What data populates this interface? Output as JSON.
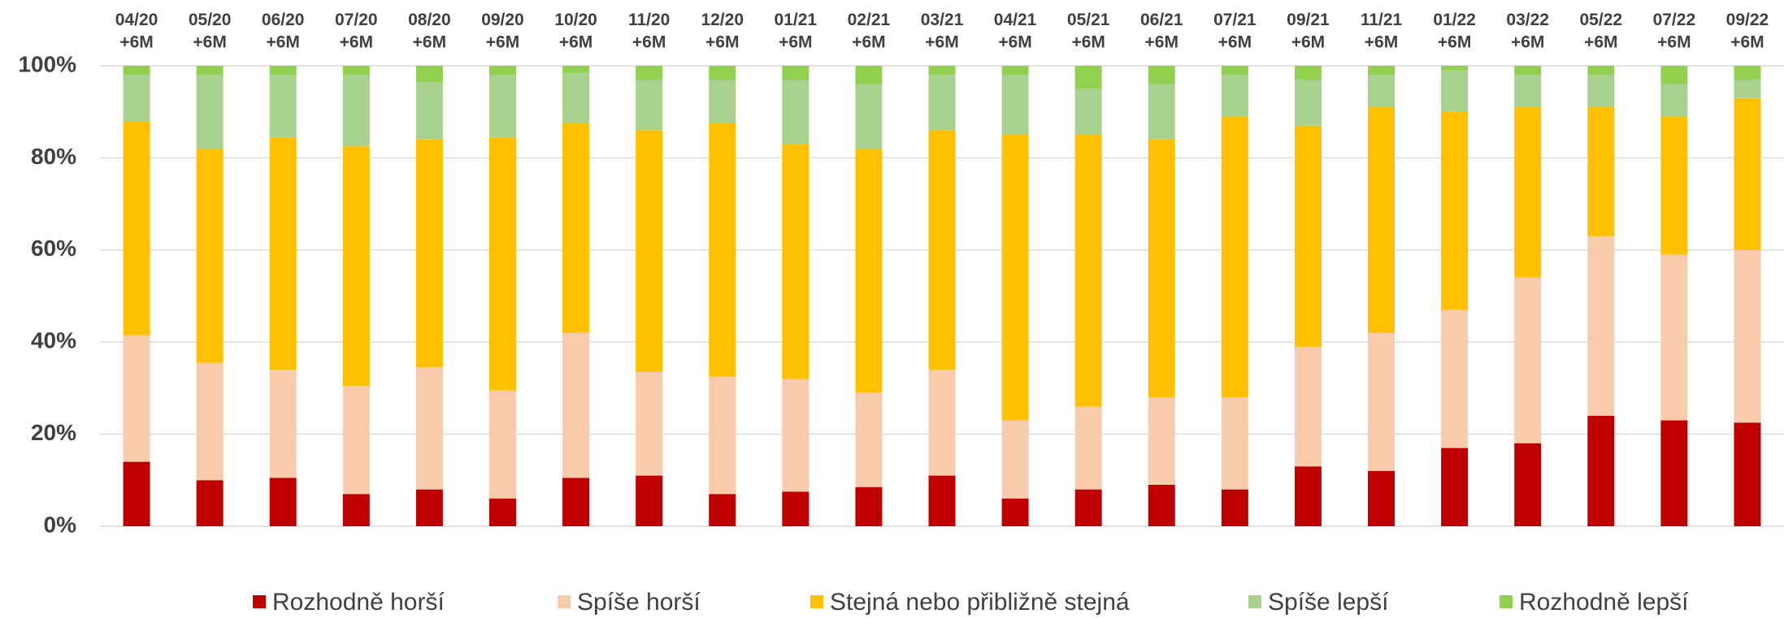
{
  "chart_data": {
    "type": "stacked_bar",
    "categories": [
      "04/20\n+6M",
      "05/20\n+6M",
      "06/20\n+6M",
      "07/20\n+6M",
      "08/20\n+6M",
      "09/20\n+6M",
      "10/20\n+6M",
      "11/20\n+6M",
      "12/20\n+6M",
      "01/21\n+6M",
      "02/21\n+6M",
      "03/21\n+6M",
      "04/21\n+6M",
      "05/21\n+6M",
      "06/21\n+6M",
      "07/21\n+6M",
      "09/21\n+6M",
      "11/21\n+6M",
      "01/22\n+6M",
      "03/22\n+6M",
      "05/22\n+6M",
      "07/22\n+6M",
      "09/22\n+6M"
    ],
    "series": [
      {
        "name": "Rozhodně horší",
        "color": "#c00000",
        "values": [
          14,
          10,
          10.5,
          7,
          8,
          6,
          10.5,
          11,
          7,
          7.5,
          8.5,
          11,
          6,
          8,
          9,
          8,
          13,
          12,
          17,
          18,
          24,
          23,
          22.5
        ]
      },
      {
        "name": "Spíše horší",
        "color": "#f8cbad",
        "values": [
          27.5,
          25.5,
          23.5,
          23.5,
          26.5,
          23.5,
          31.5,
          22.5,
          25.5,
          24.5,
          20.5,
          23,
          17,
          18,
          19,
          20,
          26,
          30,
          30,
          36,
          39,
          36,
          37.5
        ]
      },
      {
        "name": "Stejná nebo přibližně stejná",
        "color": "#ffc000",
        "values": [
          46.5,
          46.5,
          50.5,
          52,
          49.5,
          55,
          45.5,
          52.5,
          55,
          51,
          53,
          52,
          62,
          59,
          56,
          61,
          48,
          49,
          43,
          37,
          28,
          30,
          33
        ]
      },
      {
        "name": "Spíše lepší",
        "color": "#a9d18e",
        "values": [
          10,
          16,
          13.5,
          15.5,
          12.5,
          13.5,
          11,
          11,
          9.5,
          14,
          14,
          12,
          13,
          10,
          12,
          9,
          10,
          7,
          9,
          7,
          7,
          7,
          4
        ]
      },
      {
        "name": "Rozhodně lepší",
        "color": "#92d050",
        "values": [
          2,
          2,
          2,
          2,
          3.5,
          2,
          1.5,
          3,
          3,
          3,
          4,
          2,
          2,
          5,
          4,
          2,
          3,
          2,
          1,
          2,
          2,
          4,
          3
        ]
      }
    ],
    "ylim": [
      0,
      100
    ],
    "yticks": [
      {
        "value": 0,
        "label": "0%"
      },
      {
        "value": 20,
        "label": "20%"
      },
      {
        "value": 40,
        "label": "40%"
      },
      {
        "value": 60,
        "label": "60%"
      },
      {
        "value": 80,
        "label": "80%"
      },
      {
        "value": 100,
        "label": "100%"
      }
    ],
    "grid": true,
    "legend": "bottom"
  }
}
